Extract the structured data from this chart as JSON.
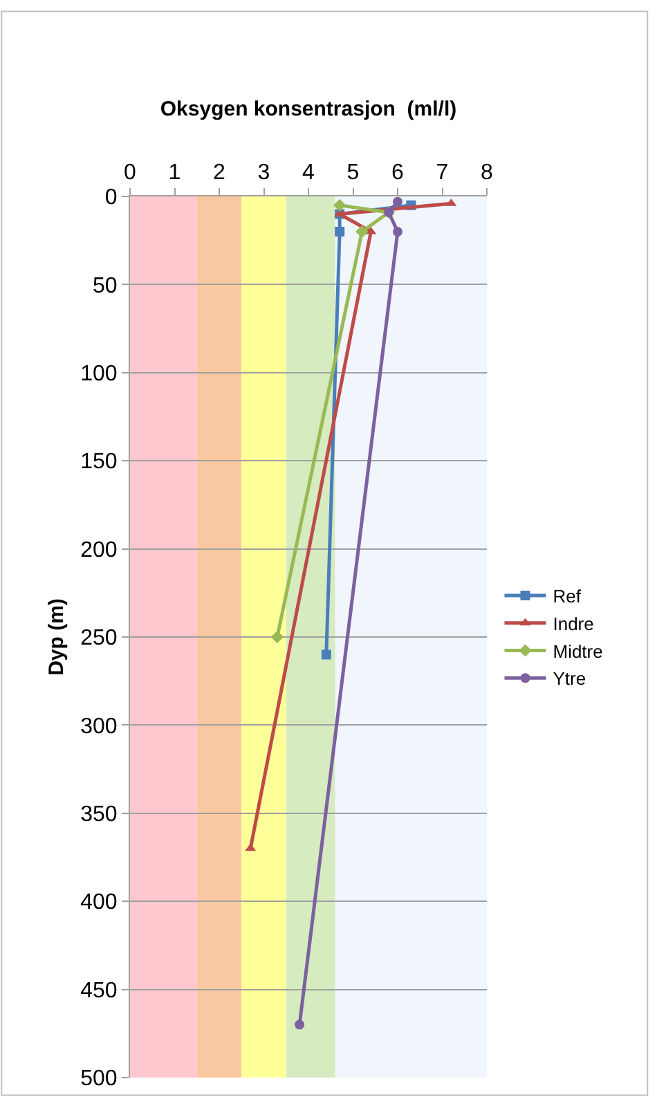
{
  "chart_data": {
    "type": "line",
    "title": "Oksygen konsentrasjon  (ml/l)",
    "ylabel": "Dyp (m)",
    "xlim": [
      0,
      8
    ],
    "xticks": [
      0,
      1,
      2,
      3,
      4,
      5,
      6,
      7,
      8
    ],
    "ylim": [
      500,
      0
    ],
    "yticks": [
      0,
      50,
      100,
      150,
      200,
      250,
      300,
      350,
      400,
      450,
      500
    ],
    "grid": "y",
    "legend": "right",
    "bands": [
      {
        "axis": "x",
        "from": 0,
        "to": 1.5,
        "color": "#ffc7ce"
      },
      {
        "axis": "x",
        "from": 1.5,
        "to": 2.5,
        "color": "#fac8a0"
      },
      {
        "axis": "x",
        "from": 2.5,
        "to": 3.5,
        "color": "#ffff99"
      },
      {
        "axis": "x",
        "from": 3.5,
        "to": 4.6,
        "color": "#d6ebc0"
      },
      {
        "axis": "x",
        "from": 4.6,
        "to": 8,
        "color": "#f0f6fb"
      }
    ],
    "series": [
      {
        "name": "Ref",
        "color": "#4a7ebb",
        "marker": "square",
        "x": [
          6.3,
          4.7,
          4.7,
          4.4
        ],
        "values": [
          5,
          10,
          20,
          260
        ]
      },
      {
        "name": "Indre",
        "color": "#be4b48",
        "marker": "triangle",
        "x": [
          7.2,
          4.7,
          5.4,
          2.7
        ],
        "values": [
          4,
          10,
          20,
          370
        ]
      },
      {
        "name": "Midtre",
        "color": "#98b954",
        "marker": "diamond",
        "x": [
          4.7,
          5.8,
          5.2,
          3.3
        ],
        "values": [
          5,
          9,
          20,
          250
        ]
      },
      {
        "name": "Ytre",
        "color": "#7d60a0",
        "marker": "circle",
        "x": [
          6.0,
          5.8,
          6.0,
          3.8
        ],
        "values": [
          3,
          9,
          20,
          470
        ]
      }
    ]
  }
}
